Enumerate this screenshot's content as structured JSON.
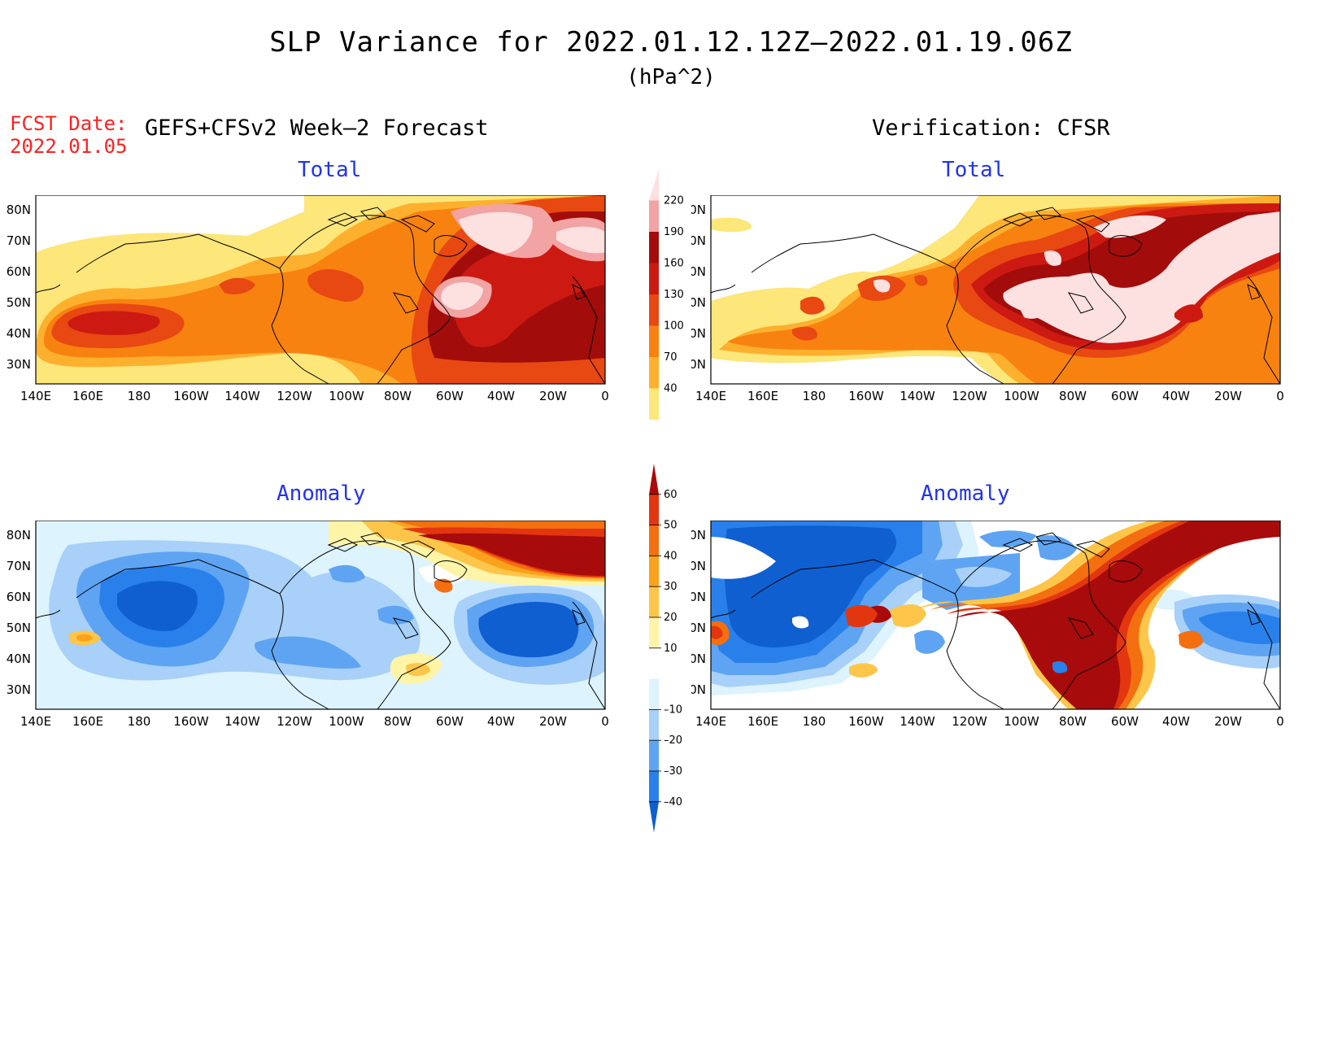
{
  "title": "SLP Variance for 2022.01.12.12Z–2022.01.19.06Z",
  "units": "(hPa^2)",
  "fcst_date_label": "FCST Date:",
  "fcst_date_value": "2022.01.05",
  "left_header": "GEFS+CFSv2 Week–2 Forecast",
  "right_header": "Verification: CFSR",
  "panels": {
    "forecast_total": {
      "subtitle": "Total"
    },
    "verification_total": {
      "subtitle": "Total"
    },
    "forecast_anomaly": {
      "subtitle": "Anomaly"
    },
    "verification_anomaly": {
      "subtitle": "Anomaly"
    }
  },
  "axes": {
    "lat_labels": [
      "80N",
      "70N",
      "60N",
      "50N",
      "40N",
      "30N"
    ],
    "lon_labels": [
      "140E",
      "160E",
      "180",
      "160W",
      "140W",
      "120W",
      "100W",
      "80W",
      "60W",
      "40W",
      "20W",
      "0"
    ]
  },
  "colorbar_total": {
    "labels": [
      "40",
      "70",
      "100",
      "130",
      "160",
      "190",
      "220"
    ],
    "colors": [
      "#fde67a",
      "#fdb02e",
      "#f88210",
      "#e84812",
      "#cc1a12",
      "#a20d0b",
      "#f2a3a3",
      "#fde0e0"
    ]
  },
  "colorbar_anomaly": {
    "labels": [
      "–40",
      "–30",
      "–20",
      "–10",
      "10",
      "20",
      "30",
      "40",
      "50",
      "60"
    ],
    "colors": [
      "#0f5fd0",
      "#2a80ea",
      "#5ea4f2",
      "#a8d0f8",
      "#ddf3fd",
      "#ffffff",
      "#fff4a8",
      "#fdc64a",
      "#fba21c",
      "#f36f10",
      "#e23610",
      "#a80b0b"
    ]
  }
}
